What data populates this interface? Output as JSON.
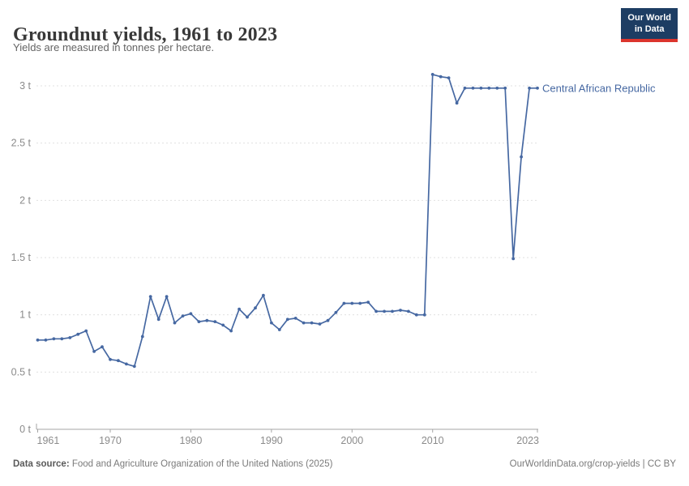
{
  "header": {
    "title": "Groundnut yields, 1961 to 2023",
    "subtitle": "Yields are measured in tonnes per hectare.",
    "logo_line1": "Our World",
    "logo_line2": "in Data"
  },
  "chart_data": {
    "type": "line",
    "title": "Groundnut yields, 1961 to 2023",
    "unit": "tonnes per hectare",
    "xlim": [
      1961,
      2023
    ],
    "ylim": [
      0,
      3.17
    ],
    "grid": "horizontal-dashed",
    "legend_position": "right-of-last-point",
    "x_ticks": [
      1961,
      1970,
      1980,
      1990,
      2000,
      2010,
      2023
    ],
    "x_tick_labels": [
      "1961",
      "1970",
      "1980",
      "1990",
      "2000",
      "2010",
      "2023"
    ],
    "y_ticks": [
      0,
      0.5,
      1,
      1.5,
      2,
      2.5,
      3
    ],
    "y_tick_labels": [
      "0 t",
      "0.5 t",
      "1 t",
      "1.5 t",
      "2 t",
      "2.5 t",
      "3 t"
    ],
    "series": [
      {
        "name": "Central African Republic",
        "color": "#4668A2",
        "x": [
          1961,
          1962,
          1963,
          1964,
          1965,
          1966,
          1967,
          1968,
          1969,
          1970,
          1971,
          1972,
          1973,
          1974,
          1975,
          1976,
          1977,
          1978,
          1979,
          1980,
          1981,
          1982,
          1983,
          1984,
          1985,
          1986,
          1987,
          1988,
          1989,
          1990,
          1991,
          1992,
          1993,
          1994,
          1995,
          1996,
          1997,
          1998,
          1999,
          2000,
          2001,
          2002,
          2003,
          2004,
          2005,
          2006,
          2007,
          2008,
          2009,
          2010,
          2011,
          2012,
          2013,
          2014,
          2015,
          2016,
          2017,
          2018,
          2019,
          2020,
          2021,
          2022,
          2023
        ],
        "values": [
          0.78,
          0.78,
          0.79,
          0.79,
          0.8,
          0.83,
          0.86,
          0.68,
          0.72,
          0.61,
          0.6,
          0.57,
          0.55,
          0.81,
          1.16,
          0.96,
          1.16,
          0.93,
          0.99,
          1.01,
          0.94,
          0.95,
          0.94,
          0.91,
          0.86,
          1.05,
          0.98,
          1.06,
          1.17,
          0.93,
          0.87,
          0.96,
          0.97,
          0.93,
          0.93,
          0.92,
          0.95,
          1.02,
          1.1,
          1.1,
          1.1,
          1.11,
          1.03,
          1.03,
          1.03,
          1.04,
          1.03,
          1.0,
          1.0,
          3.1,
          3.08,
          3.07,
          2.85,
          2.98,
          2.98,
          2.98,
          2.98,
          2.98,
          2.98,
          1.49,
          2.38,
          2.98,
          2.98
        ]
      }
    ],
    "colors": {
      "gridline": "#e0e0e0",
      "axis": "#a5a5a5",
      "tick_label": "#8b8b8b"
    }
  },
  "footer": {
    "source_label": "Data source:",
    "source_text": " Food and Agriculture Organization of the United Nations (2025)",
    "link_text": "OurWorldinData.org/crop-yields | CC BY"
  }
}
